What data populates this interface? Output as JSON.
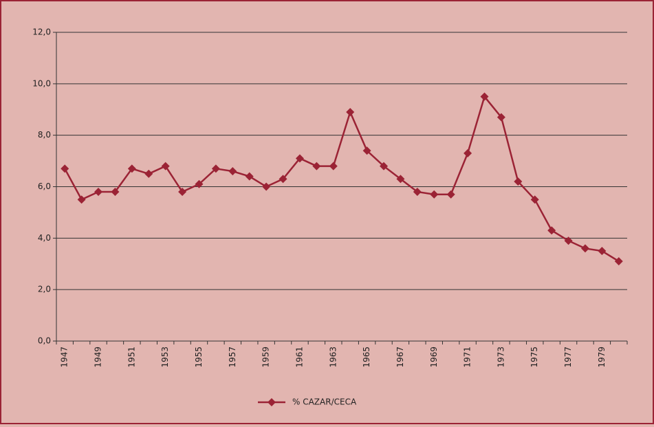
{
  "chart_data": {
    "type": "line",
    "categories": [
      "1947",
      null,
      "1949",
      null,
      "1951",
      null,
      "1953",
      null,
      "1955",
      null,
      "1957",
      null,
      "1959",
      null,
      "1961",
      null,
      "1963",
      null,
      "1965",
      null,
      "1967",
      null,
      "1969",
      null,
      "1971",
      null,
      "1973",
      null,
      "1975",
      null,
      "1977",
      null,
      "1979",
      null
    ],
    "series": [
      {
        "name": "% CAZAR/CECA",
        "color": "#9b2335",
        "values": [
          6.7,
          5.5,
          5.8,
          5.8,
          6.7,
          6.5,
          6.8,
          5.8,
          6.1,
          6.7,
          6.6,
          6.4,
          6.0,
          6.3,
          7.1,
          6.8,
          6.8,
          8.9,
          7.4,
          6.8,
          6.3,
          5.8,
          5.7,
          5.7,
          7.3,
          9.5,
          8.7,
          6.2,
          5.5,
          4.3,
          3.9,
          3.6,
          3.5,
          3.1
        ]
      }
    ],
    "ylim": [
      0,
      12
    ],
    "yticks": [
      {
        "value": 0,
        "label": "0,0"
      },
      {
        "value": 2,
        "label": "2,0"
      },
      {
        "value": 4,
        "label": "4,0"
      },
      {
        "value": 6,
        "label": "6,0"
      },
      {
        "value": 8,
        "label": "8,0"
      },
      {
        "value": 10,
        "label": "10,0"
      },
      {
        "value": 12,
        "label": "12,0"
      }
    ],
    "grid": true,
    "legend": "bottom"
  }
}
